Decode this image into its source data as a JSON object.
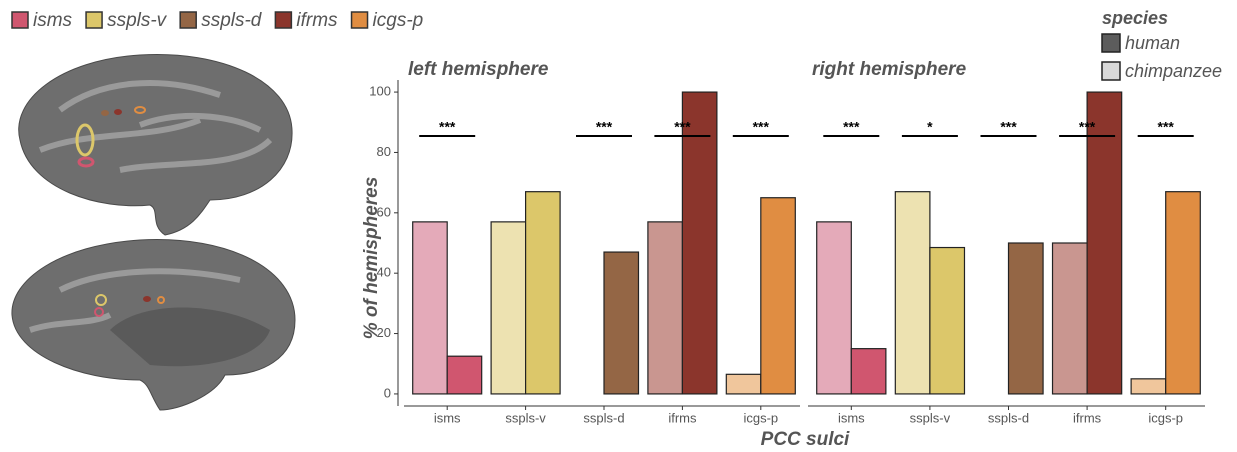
{
  "chart_data": {
    "type": "bar",
    "x_label": "PCC sulci",
    "y_label": "% of hemispheres",
    "ylim": [
      -4,
      104
    ],
    "yticks": [
      0,
      20,
      40,
      60,
      80,
      100
    ],
    "sulci": [
      {
        "name": "isms",
        "color": "#d0566f"
      },
      {
        "name": "sspls-v",
        "color": "#dcc76a"
      },
      {
        "name": "sspls-d",
        "color": "#946645"
      },
      {
        "name": "ifrms",
        "color": "#8b352c"
      },
      {
        "name": "icgs-p",
        "color": "#e08d42"
      }
    ],
    "legend_title": "species",
    "series": [
      {
        "name": "human",
        "color": "#5c5c5c",
        "bar_colors": [
          "#e4aab9",
          "#ede2b1",
          "#c4a88f",
          "#c99690",
          "#f0c69c"
        ]
      },
      {
        "name": "chimpanzee",
        "color": "#d9d9d9",
        "bar_colors": [
          "#d0566f",
          "#dcc76a",
          "#946645",
          "#8b352c",
          "#e08d42"
        ]
      }
    ],
    "facets": [
      {
        "title": "left hemisphere",
        "categories": [
          "isms",
          "sspls-v",
          "sspls-d",
          "ifrms",
          "icgs-p"
        ],
        "values": [
          [
            57,
            57,
            0,
            57,
            6.5
          ],
          [
            12.5,
            67,
            47,
            100,
            65
          ]
        ],
        "significance": [
          "***",
          null,
          "***",
          "***",
          "***"
        ]
      },
      {
        "title": "right hemisphere",
        "categories": [
          "isms",
          "sspls-v",
          "sspls-d",
          "ifrms",
          "icgs-p"
        ],
        "values": [
          [
            57,
            67,
            0,
            50,
            5
          ],
          [
            15,
            48.5,
            50,
            100,
            67
          ]
        ],
        "significance": [
          "***",
          "*",
          "***",
          "***",
          "***"
        ]
      }
    ]
  }
}
